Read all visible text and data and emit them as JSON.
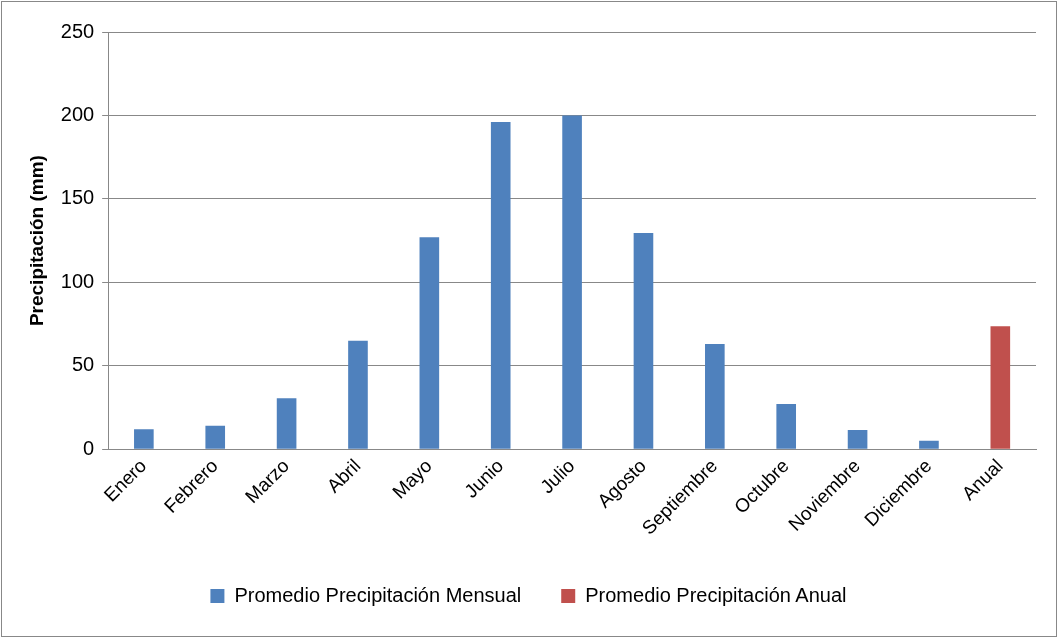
{
  "chart_data": {
    "type": "bar",
    "ylabel": "Precipitación (mm)",
    "categories": [
      "Enero",
      "Febrero",
      "Marzo",
      "Abril",
      "Mayo",
      "Junio",
      "Julio",
      "Agosto",
      "Septiembre",
      "Octubre",
      "Noviembre",
      "Diciembre",
      "Anual"
    ],
    "series": [
      {
        "name": "Promedio Precipitación Mensual",
        "color": "#4f81bd",
        "values": [
          12,
          14,
          30.5,
          65,
          127,
          196,
          200,
          129.5,
          63,
          27,
          11.5,
          5,
          null
        ]
      },
      {
        "name": "Promedio Precipitación Anual",
        "color": "#c0504d",
        "values": [
          null,
          null,
          null,
          null,
          null,
          null,
          null,
          null,
          null,
          null,
          null,
          null,
          73.6
        ]
      }
    ],
    "ylim": [
      0,
      250
    ],
    "yticks": [
      0,
      50,
      100,
      150,
      200,
      250
    ],
    "grid": "y",
    "legend": "bottom"
  }
}
